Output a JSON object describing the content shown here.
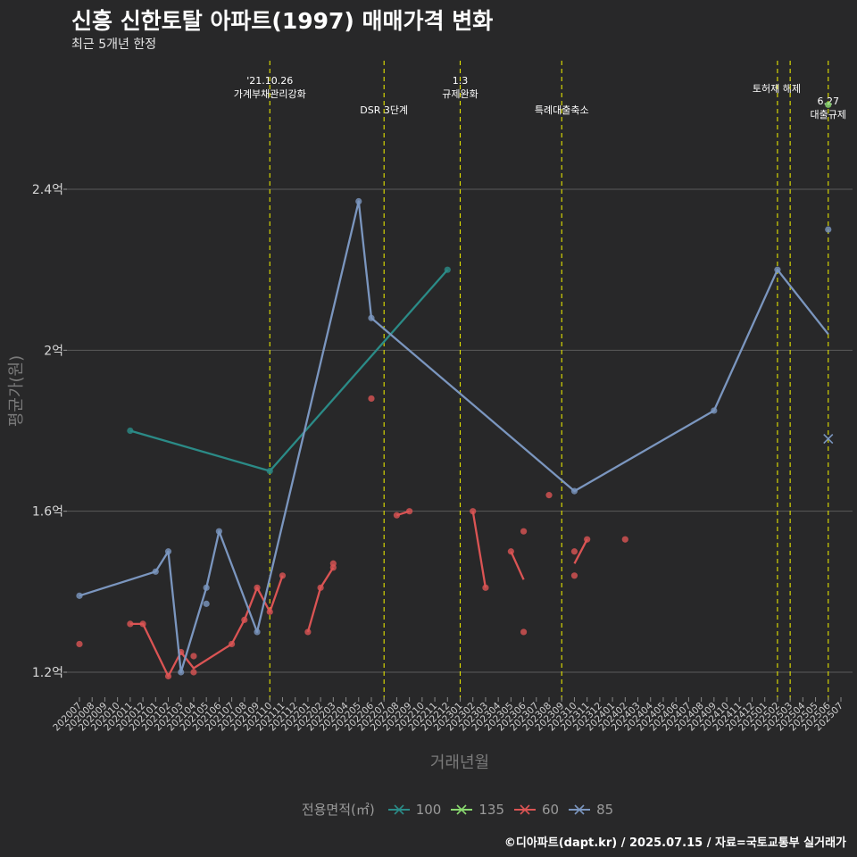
{
  "title": "신흥 신한토탈 아파트(1997) 매매가격 변화",
  "subtitle": "최근 5개년 한정",
  "caption": "©디아파트(dapt.kr) / 2025.07.15 / 자료=국토교통부 실거래가",
  "colors": {
    "background": "#282829",
    "grid": "#5a5a5a",
    "vline": "#e4e400",
    "series_100": "#2b8b87",
    "series_135": "#89d86f",
    "series_60": "#db5454",
    "series_85": "#7b96bf"
  },
  "chart_data": {
    "type": "line",
    "xlabel": "거래년월",
    "ylabel": "평균가(원)",
    "ylim": [
      1.1,
      2.6
    ],
    "yticks": [
      {
        "value": 1.2,
        "label": "1.2억"
      },
      {
        "value": 1.6,
        "label": "1.6억"
      },
      {
        "value": 2.0,
        "label": "2억"
      },
      {
        "value": 2.4,
        "label": "2.4억"
      }
    ],
    "categories": [
      "202007",
      "202008",
      "202009",
      "202010",
      "202011",
      "202012",
      "202101",
      "202102",
      "202103",
      "202104",
      "202105",
      "202106",
      "202107",
      "202108",
      "202109",
      "202110",
      "202111",
      "202112",
      "202201",
      "202202",
      "202203",
      "202204",
      "202205",
      "202206",
      "202207",
      "202208",
      "202209",
      "202210",
      "202211",
      "202212",
      "202301",
      "202302",
      "202303",
      "202304",
      "202305",
      "202306",
      "202307",
      "202308",
      "202309",
      "202310",
      "202311",
      "202312",
      "202401",
      "202402",
      "202403",
      "202404",
      "202405",
      "202406",
      "202407",
      "202408",
      "202409",
      "202410",
      "202411",
      "202412",
      "202501",
      "202502",
      "202503",
      "202504",
      "202505",
      "202506",
      "202507"
    ],
    "grid": true,
    "legend": {
      "title": "전용면적(㎡)",
      "position": "bottom",
      "entries": [
        "100",
        "135",
        "60",
        "85"
      ]
    },
    "events": [
      {
        "x": "202110",
        "label": "'21.10.26\n가계부채관리강화",
        "row": "top"
      },
      {
        "x": "202207",
        "label": "DSR 3단계",
        "row": "low"
      },
      {
        "x": "202301",
        "label": "1.3\n규제완화",
        "row": "top"
      },
      {
        "x": "202309",
        "label": "특례대출축소",
        "row": "low"
      },
      {
        "x": "202502",
        "label": "토허제 해제",
        "row": "mid"
      },
      {
        "x": "202503",
        "label": "",
        "row": "mid"
      },
      {
        "x": "202506",
        "label": "6.27\n대출규제",
        "row": "right"
      }
    ],
    "series": [
      {
        "name": "100",
        "color": "#2b8b87",
        "line": [
          [
            "202011",
            1.8
          ],
          [
            "202110",
            1.7
          ],
          [
            "202212",
            2.2
          ]
        ],
        "points": [
          [
            "202011",
            1.8
          ],
          [
            "202110",
            1.7
          ],
          [
            "202212",
            2.2
          ]
        ]
      },
      {
        "name": "135",
        "color": "#89d86f",
        "line": [],
        "points": [
          [
            "202506",
            2.61
          ]
        ]
      },
      {
        "name": "60",
        "color": "#db5454",
        "segments": [
          [
            [
              "202011",
              1.32
            ],
            [
              "202012",
              1.32
            ],
            [
              "202102",
              1.19
            ],
            [
              "202103",
              1.25
            ],
            [
              "202104",
              1.21
            ],
            [
              "202107",
              1.27
            ],
            [
              "202108",
              1.33
            ],
            [
              "202109",
              1.41
            ],
            [
              "202110",
              1.35
            ],
            [
              "202111",
              1.44
            ]
          ],
          [
            [
              "202201",
              1.3
            ],
            [
              "202202",
              1.41
            ],
            [
              "202203",
              1.46
            ]
          ],
          [
            [
              "202208",
              1.59
            ],
            [
              "202209",
              1.6
            ]
          ],
          [
            [
              "202302",
              1.6
            ],
            [
              "202303",
              1.41
            ]
          ],
          [
            [
              "202305",
              1.5
            ],
            [
              "202306",
              1.43
            ]
          ],
          [
            [
              "202310",
              1.47
            ],
            [
              "202311",
              1.53
            ]
          ]
        ],
        "points": [
          [
            "202007",
            1.27
          ],
          [
            "202011",
            1.32
          ],
          [
            "202012",
            1.32
          ],
          [
            "202102",
            1.19
          ],
          [
            "202103",
            1.25
          ],
          [
            "202104",
            1.2
          ],
          [
            "202104",
            1.24
          ],
          [
            "202107",
            1.27
          ],
          [
            "202108",
            1.33
          ],
          [
            "202109",
            1.41
          ],
          [
            "202110",
            1.35
          ],
          [
            "202111",
            1.44
          ],
          [
            "202201",
            1.3
          ],
          [
            "202202",
            1.41
          ],
          [
            "202203",
            1.46
          ],
          [
            "202203",
            1.47
          ],
          [
            "202206",
            1.88
          ],
          [
            "202208",
            1.59
          ],
          [
            "202209",
            1.6
          ],
          [
            "202302",
            1.6
          ],
          [
            "202303",
            1.41
          ],
          [
            "202305",
            1.5
          ],
          [
            "202306",
            1.55
          ],
          [
            "202306",
            1.3
          ],
          [
            "202308",
            1.64
          ],
          [
            "202310",
            1.5
          ],
          [
            "202310",
            1.44
          ],
          [
            "202311",
            1.53
          ],
          [
            "202402",
            1.53
          ]
        ]
      },
      {
        "name": "85",
        "color": "#7b96bf",
        "line": [
          [
            "202007",
            1.39
          ],
          [
            "202101",
            1.45
          ],
          [
            "202102",
            1.5
          ],
          [
            "202103",
            1.2
          ],
          [
            "202105",
            1.41
          ],
          [
            "202106",
            1.55
          ],
          [
            "202109",
            1.3
          ],
          [
            "202205",
            2.37
          ],
          [
            "202206",
            2.08
          ],
          [
            "202310",
            1.65
          ],
          [
            "202409",
            1.85
          ],
          [
            "202502",
            2.2
          ],
          [
            "202506",
            2.04
          ]
        ],
        "points": [
          [
            "202007",
            1.39
          ],
          [
            "202101",
            1.45
          ],
          [
            "202102",
            1.5
          ],
          [
            "202103",
            1.2
          ],
          [
            "202105",
            1.41
          ],
          [
            "202105",
            1.37
          ],
          [
            "202106",
            1.55
          ],
          [
            "202109",
            1.3
          ],
          [
            "202205",
            2.37
          ],
          [
            "202206",
            2.08
          ],
          [
            "202310",
            1.65
          ],
          [
            "202409",
            1.85
          ],
          [
            "202502",
            2.2
          ],
          [
            "202506",
            2.3
          ]
        ],
        "crosses": [
          [
            "202506",
            1.78
          ]
        ]
      }
    ]
  }
}
